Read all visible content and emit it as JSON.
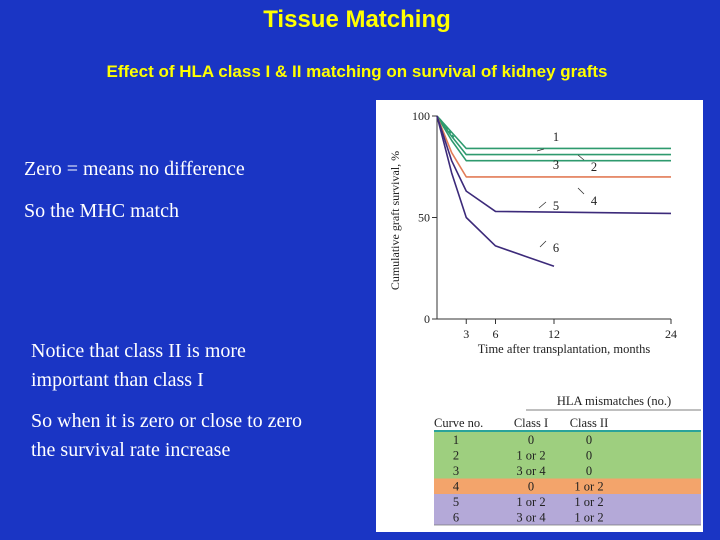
{
  "slide": {
    "title": "Tissue Matching",
    "subtitle": "Effect of HLA class I & II matching on survival of kidney grafts",
    "notes": [
      "Zero = means no difference",
      "So the MHC match",
      "Notice that class II is more important than class I",
      "So when it is zero or close to zero the survival rate increase"
    ]
  },
  "colors": {
    "background": "#1a35c4",
    "title": "#ffff00",
    "curve_green": "#2e9a6e",
    "curve_orange": "#e27c57",
    "curve_purple": "#3c2a7a",
    "row_green": "#9ecf7f",
    "row_orange": "#f3a46b",
    "row_purple": "#b4a9d8",
    "header_teal": "#2aa39a"
  },
  "chart_data": {
    "type": "line",
    "ylabel": "Cumulative graft survival, %",
    "xlabel": "Time after transplantation, months",
    "ylim": [
      0,
      100
    ],
    "xlim": [
      0,
      24
    ],
    "x_ticks": [
      3,
      6,
      12,
      24
    ],
    "y_ticks": [
      0,
      50,
      100
    ],
    "series": [
      {
        "name": "1",
        "color_key": "curve_green",
        "x": [
          0,
          1.5,
          3,
          24
        ],
        "y": [
          100,
          92,
          84,
          84
        ]
      },
      {
        "name": "2",
        "color_key": "curve_green",
        "dashed_start": true,
        "x": [
          0,
          1.5,
          3,
          24
        ],
        "y": [
          100,
          90,
          81,
          81
        ]
      },
      {
        "name": "3",
        "color_key": "curve_green",
        "x": [
          0,
          1.5,
          3,
          24
        ],
        "y": [
          100,
          88,
          78,
          78
        ]
      },
      {
        "name": "4",
        "color_key": "curve_orange",
        "x": [
          0,
          1.5,
          3,
          24
        ],
        "y": [
          100,
          82,
          70,
          70
        ]
      },
      {
        "name": "5",
        "color_key": "curve_purple",
        "x": [
          0,
          1.5,
          3,
          6,
          24
        ],
        "y": [
          100,
          78,
          63,
          53,
          52
        ]
      },
      {
        "name": "6",
        "color_key": "curve_purple",
        "x": [
          0,
          1.5,
          3,
          6,
          9,
          12
        ],
        "y": [
          100,
          72,
          50,
          36,
          31,
          26
        ]
      }
    ],
    "table": {
      "group_header": "HLA mismatches (no.)",
      "columns": [
        "Curve no.",
        "Class I",
        "Class II"
      ],
      "rows": [
        {
          "curve": "1",
          "class1": "0",
          "class2": "0",
          "color_key": "row_green"
        },
        {
          "curve": "2",
          "class1": "1 or 2",
          "class2": "0",
          "color_key": "row_green"
        },
        {
          "curve": "3",
          "class1": "3 or 4",
          "class2": "0",
          "color_key": "row_green"
        },
        {
          "curve": "4",
          "class1": "0",
          "class2": "1 or 2",
          "color_key": "row_orange"
        },
        {
          "curve": "5",
          "class1": "1 or 2",
          "class2": "1 or 2",
          "color_key": "row_purple"
        },
        {
          "curve": "6",
          "class1": "3 or 4",
          "class2": "1 or 2",
          "color_key": "row_purple"
        }
      ]
    }
  }
}
